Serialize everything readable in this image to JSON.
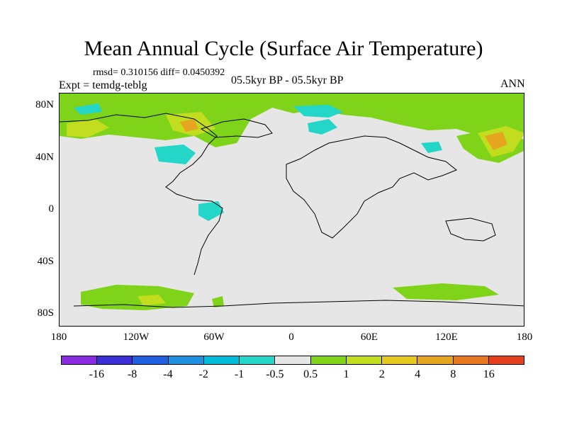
{
  "header": {
    "title": "Mean Annual Cycle (Surface Air Temperature)",
    "stats": "rmsd= 0.310156 diff= 0.0450392",
    "experiment": "Expt = temdg-teblg",
    "period": "05.5kyr BP - 05.5kyr BP",
    "season": "ANN"
  },
  "axes": {
    "lat_labels": [
      "80N",
      "40N",
      "0",
      "40S",
      "80S"
    ],
    "lon_labels": [
      "180",
      "120W",
      "60W",
      "0",
      "60E",
      "120E",
      "180"
    ]
  },
  "colorbar": {
    "colors": [
      "#8a2be2",
      "#3a2fd6",
      "#1f5fe0",
      "#1f8fe0",
      "#00bcd8",
      "#23d6c8",
      "#e6e6e6",
      "#7fd41a",
      "#c2dc1e",
      "#e6c81e",
      "#e6a51e",
      "#e6781e",
      "#e6401e"
    ],
    "labels": [
      "-16",
      "-8",
      "-4",
      "-2",
      "-1",
      "-0.5",
      "0.5",
      "1",
      "2",
      "4",
      "8",
      "16"
    ]
  },
  "palette": {
    "background": "#e6e6e6",
    "green": "#7fd41a",
    "yellow": "#c2dc1e",
    "orange": "#e6a51e",
    "cyan": "#23d6c8"
  }
}
